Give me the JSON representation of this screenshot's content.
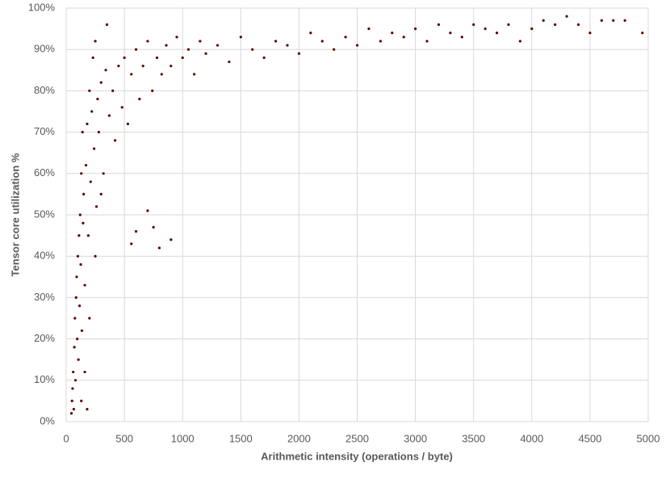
{
  "chart_data": {
    "type": "scatter",
    "x_label": "Arithmetic intensity (operations / byte)",
    "y_label": "Tensor core utilization %",
    "color": "#5c0000",
    "x": [
      45,
      50,
      55,
      60,
      65,
      70,
      75,
      80,
      85,
      90,
      95,
      100,
      105,
      110,
      115,
      120,
      125,
      130,
      135,
      140,
      145,
      150,
      160,
      170,
      180,
      190,
      200,
      210,
      220,
      230,
      240,
      250,
      260,
      270,
      280,
      300,
      320,
      340,
      350,
      370,
      400,
      420,
      450,
      480,
      500,
      530,
      560,
      600,
      630,
      660,
      700,
      740,
      780,
      820,
      860,
      900,
      950,
      1000,
      1050,
      1100,
      1150,
      1200,
      1300,
      1400,
      1500,
      1600,
      1700,
      1800,
      1900,
      2000,
      2100,
      2200,
      2300,
      2400,
      2500,
      2600,
      2700,
      2800,
      2900,
      3000,
      3100,
      3200,
      3300,
      3400,
      3500,
      3600,
      3700,
      3800,
      3900,
      4000,
      4100,
      4200,
      4300,
      4400,
      4500,
      4600,
      4700,
      4800,
      4950,
      600,
      700,
      800,
      900,
      750,
      560,
      130,
      160,
      200,
      250,
      300,
      180
    ],
    "y": [
      2,
      5,
      8,
      12,
      3,
      18,
      25,
      10,
      30,
      35,
      20,
      40,
      15,
      45,
      28,
      50,
      38,
      60,
      22,
      70,
      48,
      55,
      33,
      62,
      72,
      45,
      80,
      58,
      75,
      88,
      66,
      92,
      52,
      78,
      70,
      82,
      60,
      85,
      96,
      74,
      80,
      68,
      86,
      76,
      88,
      72,
      84,
      90,
      78,
      86,
      92,
      80,
      88,
      84,
      91,
      86,
      93,
      88,
      90,
      84,
      92,
      89,
      91,
      87,
      93,
      90,
      88,
      92,
      91,
      89,
      94,
      92,
      90,
      93,
      91,
      95,
      92,
      94,
      93,
      95,
      92,
      96,
      94,
      93,
      96,
      95,
      94,
      96,
      92,
      95,
      97,
      96,
      98,
      96,
      94,
      97,
      97,
      97,
      94,
      46,
      51,
      42,
      44,
      47,
      43,
      5,
      12,
      25,
      40,
      55,
      3
    ],
    "xlim": [
      0,
      5000
    ],
    "xticks": [
      0,
      500,
      1000,
      1500,
      2000,
      2500,
      3000,
      3500,
      4000,
      4500,
      5000
    ],
    "ylim": [
      0,
      100
    ],
    "yticks": [
      {
        "value": 0,
        "label": "0%"
      },
      {
        "value": 10,
        "label": "10%"
      },
      {
        "value": 20,
        "label": "20%"
      },
      {
        "value": 30,
        "label": "30%"
      },
      {
        "value": 40,
        "label": "40%"
      },
      {
        "value": 50,
        "label": "50%"
      },
      {
        "value": 60,
        "label": "60%"
      },
      {
        "value": 70,
        "label": "70%"
      },
      {
        "value": 80,
        "label": "80%"
      },
      {
        "value": 90,
        "label": "90%"
      },
      {
        "value": 100,
        "label": "100%"
      }
    ],
    "grid": true
  }
}
